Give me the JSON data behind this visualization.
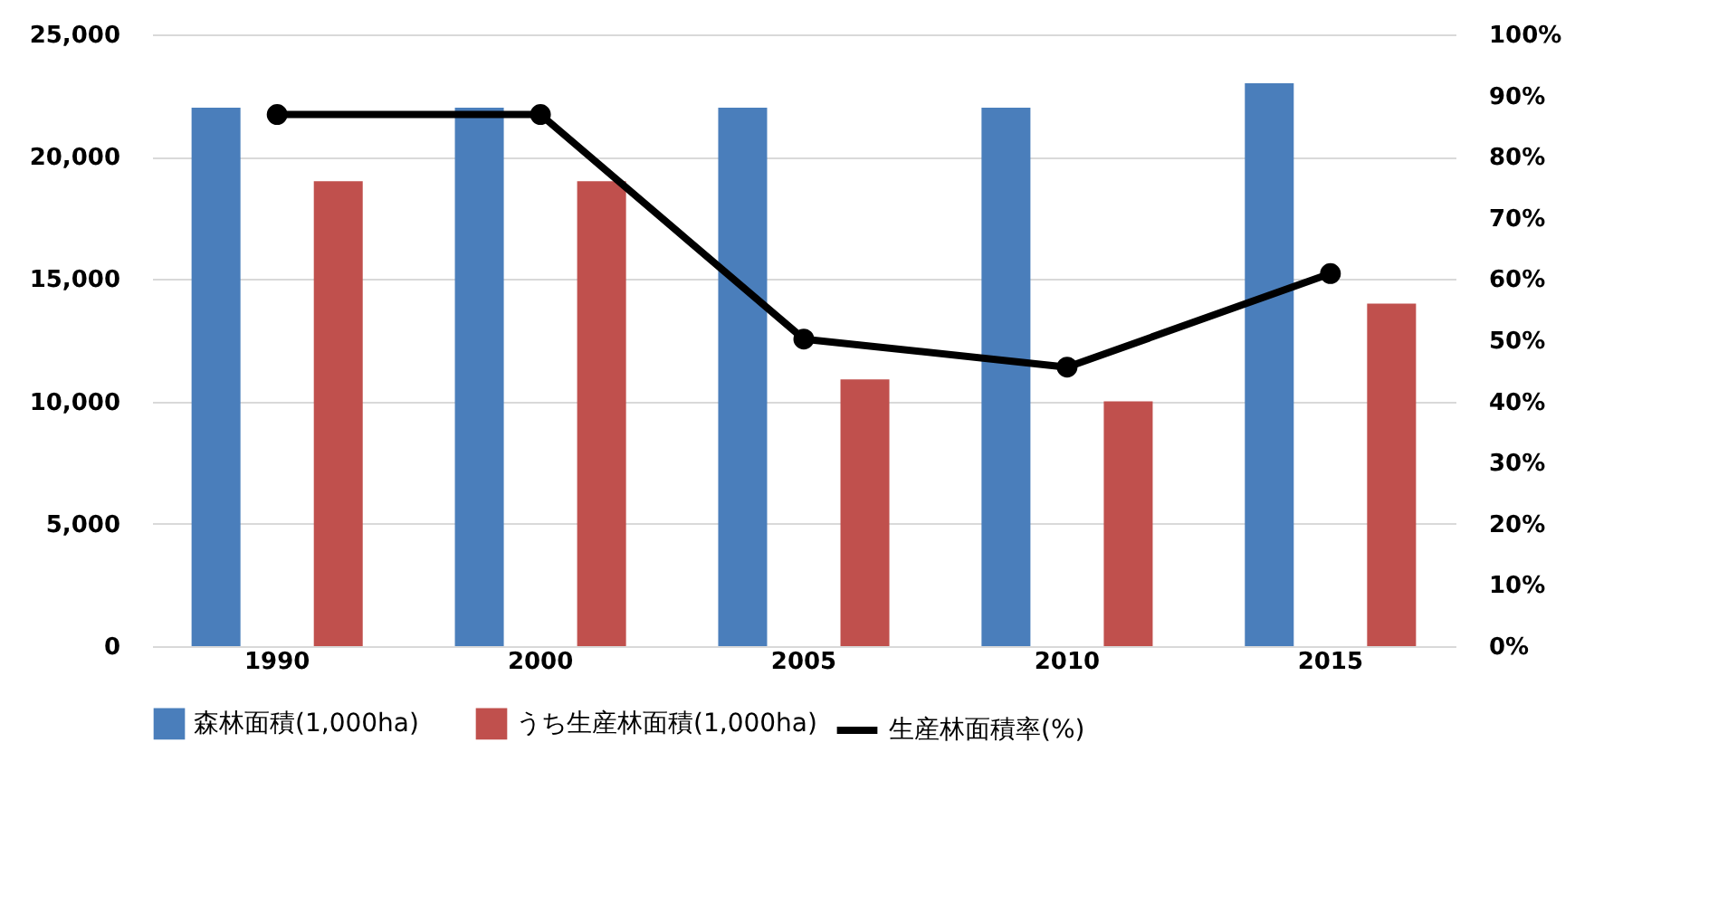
{
  "chart_data": {
    "type": "bar",
    "categories": [
      "1990",
      "2000",
      "2005",
      "2010",
      "2015"
    ],
    "series": [
      {
        "name": "森林面積(1,000ha)",
        "color": "#4a7ebb",
        "values": [
          22000,
          22000,
          22000,
          22000,
          23000
        ]
      },
      {
        "name": "うち生産林面積(1,000ha)",
        "color": "#c0504d",
        "values": [
          19000,
          19000,
          10900,
          10000,
          14000
        ]
      },
      {
        "name": "生産林面積率(%)",
        "type": "line",
        "axis": "y2",
        "color": "#000000",
        "values": [
          86.9,
          86.9,
          50.2,
          45.6,
          60.9
        ]
      }
    ],
    "ylim": [
      0,
      25000
    ],
    "yticks": [
      {
        "value": 0,
        "label": "0"
      },
      {
        "value": 5000,
        "label": "5,000"
      },
      {
        "value": 10000,
        "label": "10,000"
      },
      {
        "value": 15000,
        "label": "15,000"
      },
      {
        "value": 20000,
        "label": "20,000"
      },
      {
        "value": 25000,
        "label": "25,000"
      }
    ],
    "y2lim": [
      0,
      100
    ],
    "y2ticks": [
      {
        "value": 0,
        "label": "0%"
      },
      {
        "value": 10,
        "label": "10%"
      },
      {
        "value": 20,
        "label": "20%"
      },
      {
        "value": 30,
        "label": "30%"
      },
      {
        "value": 40,
        "label": "40%"
      },
      {
        "value": 50,
        "label": "50%"
      },
      {
        "value": 60,
        "label": "60%"
      },
      {
        "value": 70,
        "label": "70%"
      },
      {
        "value": 80,
        "label": "80%"
      },
      {
        "value": 90,
        "label": "90%"
      },
      {
        "value": 100,
        "label": "100%"
      }
    ],
    "grid": "y",
    "legend": "bottom",
    "marker": "circle",
    "line_style": "solid"
  }
}
